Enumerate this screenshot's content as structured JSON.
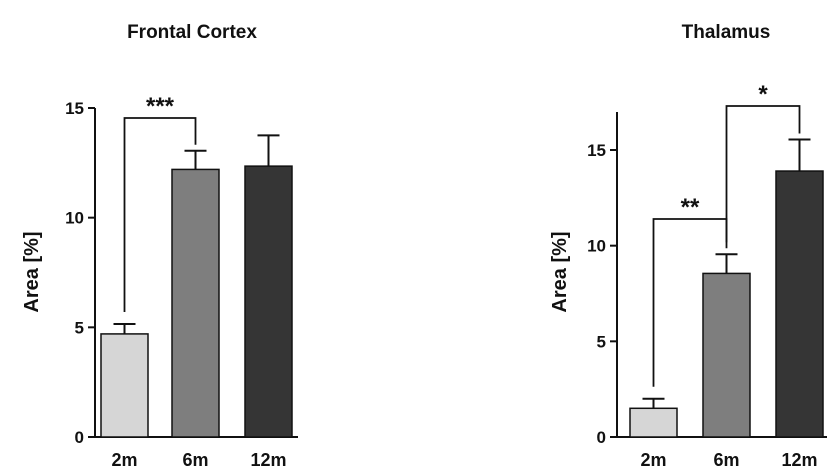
{
  "chart_data": [
    {
      "type": "bar",
      "title": "Frontal Cortex",
      "ylabel": "Area [%]",
      "categories": [
        "2m",
        "6m",
        "12m"
      ],
      "values": [
        4.7,
        12.2,
        12.35
      ],
      "errors": [
        0.45,
        0.85,
        1.4
      ],
      "colors": [
        "#d6d6d6",
        "#7e7e7e",
        "#353535"
      ],
      "ylim": [
        0,
        15
      ],
      "yticks": [
        "0",
        "5",
        "10",
        "15"
      ],
      "significance": [
        {
          "from": 0,
          "to": 1,
          "label": "***"
        }
      ]
    },
    {
      "type": "bar",
      "title": "Thalamus",
      "ylabel": "Area [%]",
      "categories": [
        "2m",
        "6m",
        "12m"
      ],
      "values": [
        1.5,
        8.55,
        13.9
      ],
      "errors": [
        0.5,
        1.0,
        1.65
      ],
      "colors": [
        "#d6d6d6",
        "#7e7e7e",
        "#353535"
      ],
      "ylim": [
        0,
        15
      ],
      "yticks": [
        "0",
        "5",
        "10",
        "15"
      ],
      "significance": [
        {
          "from": 0,
          "to": 1,
          "label": "**"
        },
        {
          "from": 1,
          "to": 2,
          "label": "*"
        }
      ]
    }
  ]
}
